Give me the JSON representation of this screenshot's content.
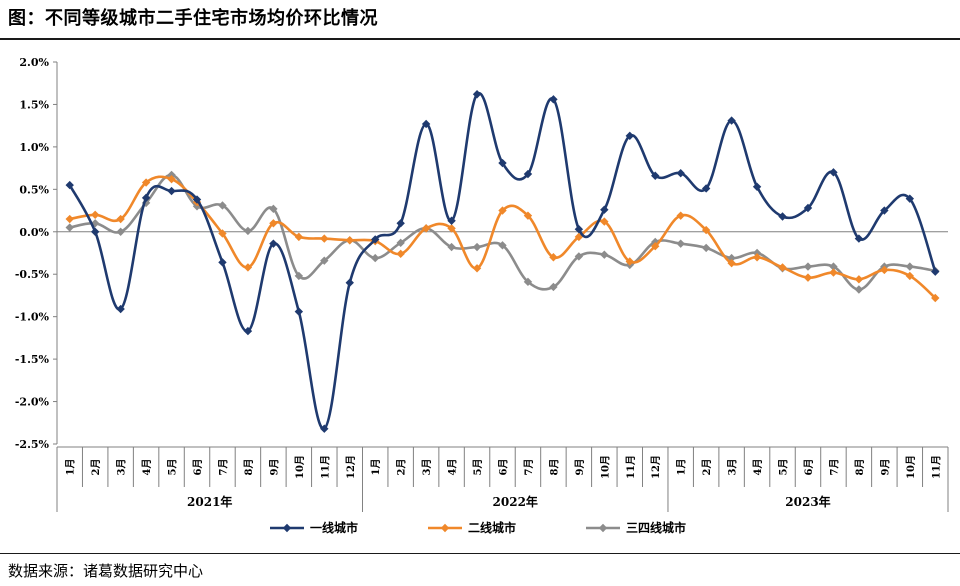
{
  "header": {
    "title": "图：不同等级城市二手住宅市场均价环比情况"
  },
  "footer": {
    "source": "数据来源：诸葛数据研究中心"
  },
  "chart_data": {
    "type": "line",
    "categories": [
      "1月",
      "2月",
      "3月",
      "4月",
      "5月",
      "6月",
      "7月",
      "8月",
      "9月",
      "10月",
      "11月",
      "12月",
      "1月",
      "2月",
      "3月",
      "4月",
      "5月",
      "6月",
      "7月",
      "8月",
      "9月",
      "10月",
      "11月",
      "12月",
      "1月",
      "2月",
      "3月",
      "4月",
      "5月",
      "6月",
      "7月",
      "8月",
      "9月",
      "10月",
      "11月"
    ],
    "year_groups": [
      {
        "label": "2021年",
        "count": 12
      },
      {
        "label": "2022年",
        "count": 12
      },
      {
        "label": "2023年",
        "count": 11
      }
    ],
    "ylim": [
      -2.5,
      2.0
    ],
    "yticks": [
      "2.0%",
      "1.5%",
      "1.0%",
      "0.5%",
      "0.0%",
      "-0.5%",
      "-1.0%",
      "-1.5%",
      "-2.0%",
      "-2.5%"
    ],
    "series": [
      {
        "name": "一线城市",
        "color": "#1f3a6f",
        "marker": "diamond",
        "values": [
          0.55,
          0.0,
          -0.91,
          0.4,
          0.48,
          0.38,
          -0.36,
          -1.17,
          -0.14,
          -0.94,
          -2.32,
          -0.6,
          -0.09,
          0.1,
          1.27,
          0.13,
          1.62,
          0.81,
          0.68,
          1.56,
          0.03,
          0.26,
          1.13,
          0.66,
          0.69,
          0.51,
          1.31,
          0.53,
          0.18,
          0.28,
          0.7,
          -0.08,
          0.25,
          0.39,
          -0.47
        ]
      },
      {
        "name": "二线城市",
        "color": "#f0882a",
        "marker": "diamond",
        "values": [
          0.15,
          0.2,
          0.15,
          0.58,
          0.62,
          0.35,
          -0.02,
          -0.42,
          0.1,
          -0.06,
          -0.08,
          -0.1,
          -0.11,
          -0.26,
          0.04,
          0.04,
          -0.43,
          0.25,
          0.19,
          -0.3,
          -0.06,
          0.12,
          -0.35,
          -0.17,
          0.19,
          0.02,
          -0.37,
          -0.3,
          -0.42,
          -0.54,
          -0.48,
          -0.56,
          -0.45,
          -0.52,
          -0.78
        ]
      },
      {
        "name": "三四线城市",
        "color": "#8c8c8c",
        "marker": "diamond",
        "values": [
          0.05,
          0.1,
          0.0,
          0.34,
          0.67,
          0.3,
          0.31,
          0.01,
          0.27,
          -0.52,
          -0.34,
          -0.1,
          -0.31,
          -0.13,
          0.04,
          -0.18,
          -0.18,
          -0.16,
          -0.59,
          -0.65,
          -0.29,
          -0.27,
          -0.39,
          -0.12,
          -0.14,
          -0.19,
          -0.31,
          -0.25,
          -0.43,
          -0.41,
          -0.41,
          -0.68,
          -0.41,
          -0.41,
          -0.46
        ]
      }
    ],
    "legend_position": "bottom",
    "grid": false
  }
}
